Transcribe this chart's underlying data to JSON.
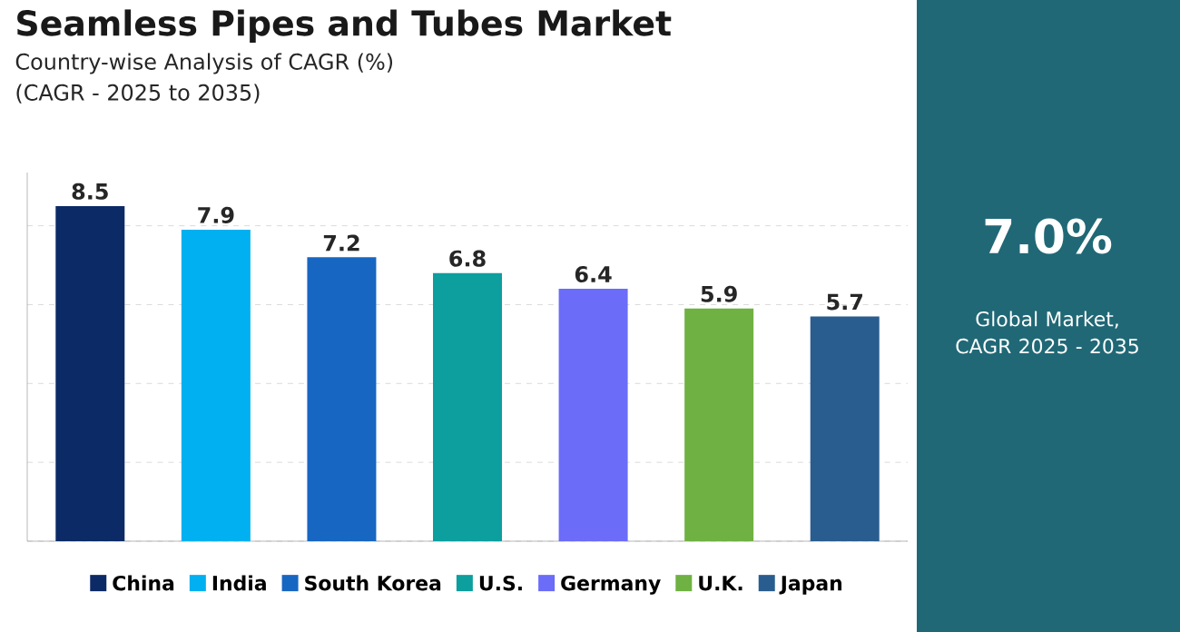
{
  "chart_data": {
    "type": "bar",
    "title": "Seamless Pipes and Tubes Market",
    "subtitle": "Country-wise Analysis of CAGR (%)",
    "annotations": [
      "(CAGR - 2025 to 2035)",
      "7.0%",
      "Global Market, CAGR 2025 - 2035"
    ],
    "categories": [
      "China",
      "India",
      "South Korea",
      "U.S.",
      "Germany",
      "U.K.",
      "Japan"
    ],
    "values": [
      8.5,
      7.9,
      7.2,
      6.8,
      6.4,
      5.9,
      5.7
    ],
    "colors": [
      "#0b2a66",
      "#00b0f0",
      "#1766c2",
      "#0d9e9e",
      "#6b6cf7",
      "#6fb143",
      "#2a5d8f"
    ],
    "data_labels": true,
    "grid": "y",
    "tick_labels": false
  }
}
